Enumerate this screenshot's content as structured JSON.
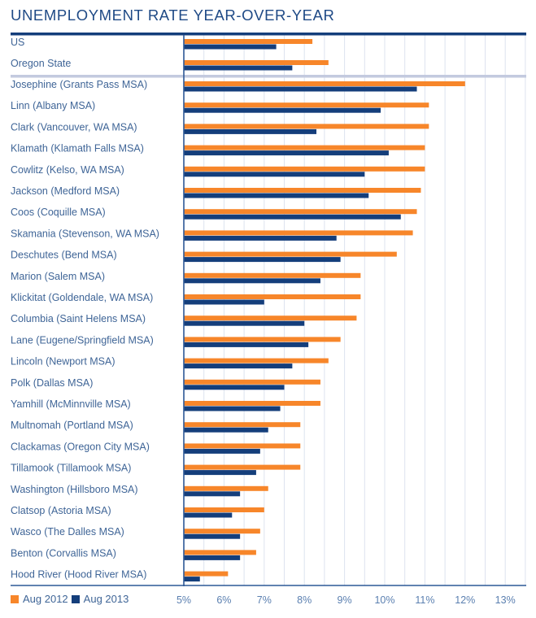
{
  "colors": {
    "aug2012": "#f7862a",
    "aug2013": "#143e7b",
    "title": "#1f4a86",
    "label": "#3f6597",
    "grid": "#dde3ef",
    "separator": "#c3cadf"
  },
  "chart_data": {
    "type": "bar",
    "orientation": "horizontal",
    "title": "UNEMPLOYMENT RATE YEAR-OVER-YEAR",
    "xlabel": "",
    "ylabel": "",
    "xlim": [
      5,
      13.5
    ],
    "x_ticks": [
      "5%",
      "6%",
      "7%",
      "8%",
      "9%",
      "10%",
      "11%",
      "12%",
      "13%"
    ],
    "x_tick_values": [
      5,
      6,
      7,
      8,
      9,
      10,
      11,
      12,
      13
    ],
    "grid": true,
    "legend_position": "bottom-left",
    "reference_categories": [
      "US",
      "Oregon State"
    ],
    "categories": [
      "US",
      "Oregon State",
      "Josephine (Grants Pass MSA)",
      "Linn (Albany MSA)",
      "Clark (Vancouver, WA MSA)",
      "Klamath (Klamath Falls MSA)",
      "Cowlitz (Kelso, WA MSA)",
      "Jackson (Medford MSA)",
      "Coos (Coquille MSA)",
      "Skamania (Stevenson, WA MSA)",
      "Deschutes (Bend MSA)",
      "Marion (Salem MSA)",
      "Klickitat (Goldendale, WA MSA)",
      "Columbia (Saint Helens MSA)",
      "Lane (Eugene/Springfield MSA)",
      "Lincoln (Newport MSA)",
      "Polk (Dallas MSA)",
      "Yamhill (McMinnville MSA)",
      "Multnomah (Portland MSA)",
      "Clackamas (Oregon City MSA)",
      "Tillamook (Tillamook MSA)",
      "Washington (Hillsboro MSA)",
      "Clatsop (Astoria MSA)",
      "Wasco (The Dalles MSA)",
      "Benton (Corvallis MSA)",
      "Hood River (Hood River MSA)"
    ],
    "series": [
      {
        "name": "Aug 2012",
        "values": [
          8.2,
          8.6,
          12.0,
          11.1,
          11.1,
          11.0,
          11.0,
          10.9,
          10.8,
          10.7,
          10.3,
          9.4,
          9.4,
          9.3,
          8.9,
          8.6,
          8.4,
          8.4,
          7.9,
          7.9,
          7.9,
          7.1,
          7.0,
          6.9,
          6.8,
          6.1
        ]
      },
      {
        "name": "Aug 2013",
        "values": [
          7.3,
          7.7,
          10.8,
          9.9,
          8.3,
          10.1,
          9.5,
          9.6,
          10.4,
          8.8,
          8.9,
          8.4,
          7.0,
          8.0,
          8.1,
          7.7,
          7.5,
          7.4,
          7.1,
          6.9,
          6.8,
          6.4,
          6.2,
          6.4,
          6.4,
          5.4
        ]
      }
    ]
  }
}
